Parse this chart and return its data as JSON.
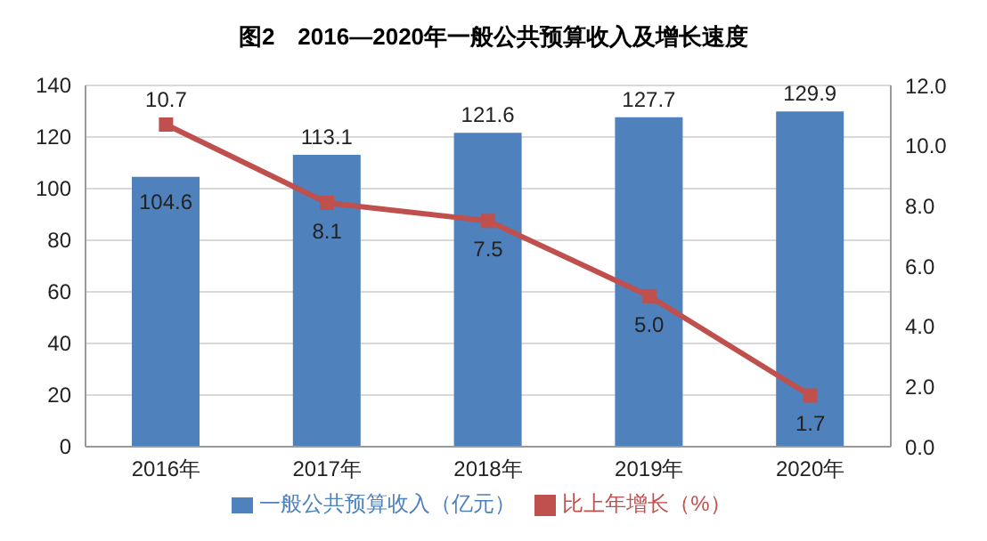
{
  "chart_data": {
    "type": "bar",
    "title": "图2　2016—2020年一般公共预算收入及增长速度",
    "categories": [
      "2016年",
      "2017年",
      "2018年",
      "2019年",
      "2020年"
    ],
    "series": [
      {
        "name": "一般公共预算收入（亿元）",
        "color": "#4f81bd",
        "values": [
          104.6,
          113.1,
          121.6,
          127.7,
          129.9
        ],
        "value_labels": [
          "104.6",
          "113.1",
          "121.6",
          "127.7",
          "129.9"
        ]
      },
      {
        "name": "比上年增长（%）",
        "type": "line",
        "axis": "y2",
        "color": "#c0504d",
        "marker": "square",
        "values": [
          10.7,
          8.1,
          7.5,
          5.0,
          1.7
        ],
        "value_labels": [
          "10.7",
          "8.1",
          "7.5",
          "5.0",
          "1.7"
        ]
      }
    ],
    "ylim": [
      0,
      140
    ],
    "yticks": [
      0,
      20,
      40,
      60,
      80,
      100,
      120,
      140
    ],
    "y2lim": [
      0,
      12
    ],
    "y2ticks": [
      {
        "value": 0,
        "label": "0.0"
      },
      {
        "value": 2,
        "label": "2.0"
      },
      {
        "value": 4,
        "label": "4.0"
      },
      {
        "value": 6,
        "label": "6.0"
      },
      {
        "value": 8,
        "label": "8.0"
      },
      {
        "value": 10,
        "label": "10.0"
      },
      {
        "value": 12,
        "label": "12.0"
      }
    ],
    "grid": "y",
    "legend": "bottom"
  }
}
